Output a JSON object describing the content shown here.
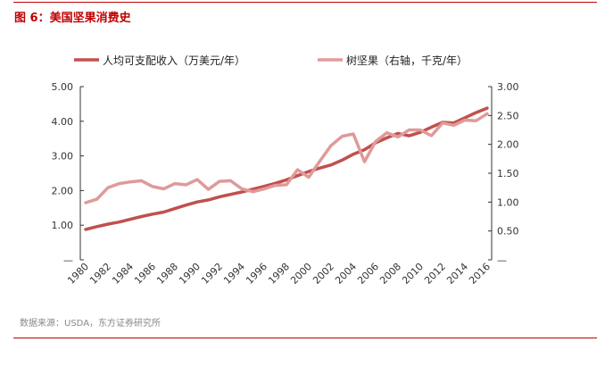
{
  "title": "图 6：美国坚果消费史",
  "source": "数据来源：USDA，东方证券研究所",
  "chart_data": {
    "type": "line",
    "title": "美国坚果消费史",
    "x": [
      1980,
      1981,
      1982,
      1983,
      1984,
      1985,
      1986,
      1987,
      1988,
      1989,
      1990,
      1991,
      1992,
      1993,
      1994,
      1995,
      1996,
      1997,
      1998,
      1999,
      2000,
      2001,
      2002,
      2003,
      2004,
      2005,
      2006,
      2007,
      2008,
      2009,
      2010,
      2011,
      2012,
      2013,
      2014,
      2015,
      2016
    ],
    "x_tick_labels": [
      "1980",
      "1982",
      "1984",
      "1986",
      "1988",
      "1990",
      "1992",
      "1994",
      "1996",
      "1998",
      "2000",
      "2002",
      "2004",
      "2006",
      "2008",
      "2010",
      "2012",
      "2014",
      "2016"
    ],
    "left_axis": {
      "ylim": [
        0,
        5
      ],
      "tick_labels": [
        "—",
        "1.00",
        "2.00",
        "3.00",
        "4.00",
        "5.00"
      ]
    },
    "right_axis": {
      "ylim": [
        0,
        3
      ],
      "tick_labels": [
        "—",
        "0.50",
        "1.00",
        "1.50",
        "2.00",
        "2.50",
        "3.00"
      ]
    },
    "legend_position": "top",
    "series": [
      {
        "name": "人均可支配收入（万美元/年）",
        "axis": "left",
        "color": "#c0504d",
        "values": [
          0.88,
          0.96,
          1.03,
          1.09,
          1.17,
          1.25,
          1.32,
          1.38,
          1.48,
          1.58,
          1.67,
          1.73,
          1.82,
          1.89,
          1.96,
          2.04,
          2.12,
          2.21,
          2.31,
          2.43,
          2.55,
          2.65,
          2.74,
          2.88,
          3.05,
          3.18,
          3.38,
          3.52,
          3.65,
          3.58,
          3.68,
          3.83,
          3.97,
          3.95,
          4.1,
          4.25,
          4.38
        ]
      },
      {
        "name": "树坚果（右轴，千克/年）",
        "axis": "right",
        "color": "#df9a99",
        "values": [
          0.99,
          1.05,
          1.25,
          1.32,
          1.35,
          1.37,
          1.27,
          1.23,
          1.32,
          1.3,
          1.39,
          1.22,
          1.36,
          1.37,
          1.23,
          1.18,
          1.23,
          1.29,
          1.3,
          1.56,
          1.43,
          1.71,
          1.98,
          2.14,
          2.18,
          1.7,
          2.05,
          2.2,
          2.13,
          2.25,
          2.25,
          2.15,
          2.37,
          2.33,
          2.42,
          2.41,
          2.53
        ]
      }
    ]
  }
}
